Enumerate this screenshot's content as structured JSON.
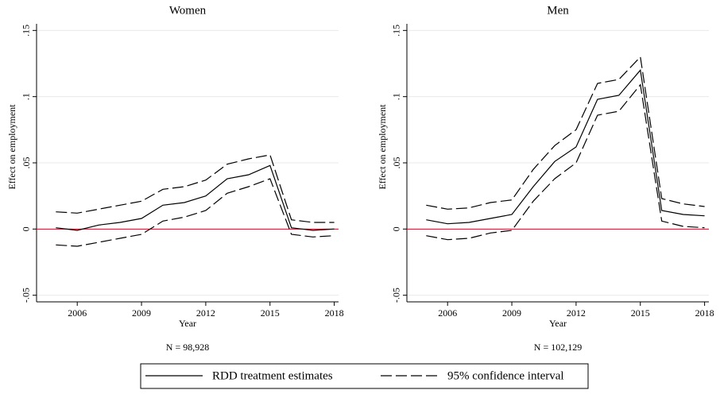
{
  "chart_data": [
    {
      "type": "line",
      "title": "Women",
      "x": [
        2005,
        2006,
        2007,
        2008,
        2009,
        2010,
        2011,
        2012,
        2013,
        2014,
        2015,
        2016,
        2017,
        2018
      ],
      "series": [
        {
          "style": "solid",
          "color": "#000000",
          "values": [
            0.001,
            -0.001,
            0.003,
            0.005,
            0.008,
            0.018,
            0.02,
            0.025,
            0.038,
            0.041,
            0.048,
            0.001,
            -0.001,
            0.0
          ]
        },
        {
          "style": "dashed",
          "color": "#000000",
          "upper": [
            0.013,
            0.012,
            0.015,
            0.018,
            0.021,
            0.03,
            0.032,
            0.037,
            0.049,
            0.053,
            0.056,
            0.007,
            0.005,
            0.005
          ],
          "lower": [
            -0.012,
            -0.013,
            -0.01,
            -0.007,
            -0.004,
            0.006,
            0.009,
            0.014,
            0.027,
            0.032,
            0.038,
            -0.004,
            -0.006,
            -0.005
          ]
        }
      ],
      "xlim": [
        2004.1,
        2018.2
      ],
      "xticks": [
        2006,
        2009,
        2012,
        2015,
        2018
      ],
      "ylim": [
        -0.055,
        0.155
      ],
      "yticks": [
        {
          "value": -0.05,
          "label": "-.05"
        },
        0,
        {
          "value": 0.05,
          "label": ".05"
        },
        {
          "value": 0.1,
          "label": ".1"
        },
        {
          "value": 0.15,
          "label": ".15"
        }
      ],
      "xlabel": "Year",
      "ylabel": "Effect on employment",
      "note": "N = 98,928",
      "grid": true,
      "hline": {
        "value": 0,
        "color": "#c8102e"
      }
    },
    {
      "type": "line",
      "title": "Men",
      "x": [
        2005,
        2006,
        2007,
        2008,
        2009,
        2010,
        2011,
        2012,
        2013,
        2014,
        2015,
        2016,
        2017,
        2018
      ],
      "series": [
        {
          "style": "solid",
          "color": "#000000",
          "values": [
            0.007,
            0.004,
            0.005,
            0.008,
            0.011,
            0.032,
            0.051,
            0.062,
            0.098,
            0.101,
            0.12,
            0.014,
            0.011,
            0.01
          ]
        },
        {
          "style": "dashed",
          "color": "#000000",
          "upper": [
            0.018,
            0.015,
            0.016,
            0.02,
            0.022,
            0.045,
            0.063,
            0.075,
            0.11,
            0.113,
            0.13,
            0.023,
            0.019,
            0.017
          ],
          "lower": [
            -0.005,
            -0.008,
            -0.007,
            -0.003,
            -0.001,
            0.021,
            0.038,
            0.05,
            0.086,
            0.089,
            0.109,
            0.006,
            0.002,
            0.001
          ]
        }
      ],
      "xlim": [
        2004.1,
        2018.2
      ],
      "xticks": [
        2006,
        2009,
        2012,
        2015,
        2018
      ],
      "ylim": [
        -0.055,
        0.155
      ],
      "yticks": [
        {
          "value": -0.05,
          "label": "-.05"
        },
        0,
        {
          "value": 0.05,
          "label": ".05"
        },
        {
          "value": 0.1,
          "label": ".1"
        },
        {
          "value": 0.15,
          "label": ".15"
        }
      ],
      "xlabel": "Year",
      "ylabel": "Effect on employment",
      "note": "N = 102,129",
      "grid": true,
      "hline": {
        "value": 0,
        "color": "#c8102e"
      }
    }
  ],
  "legend": [
    {
      "label": "RDD treatment estimates",
      "style": "solid"
    },
    {
      "label": "95% confidence interval",
      "style": "dashed"
    }
  ]
}
